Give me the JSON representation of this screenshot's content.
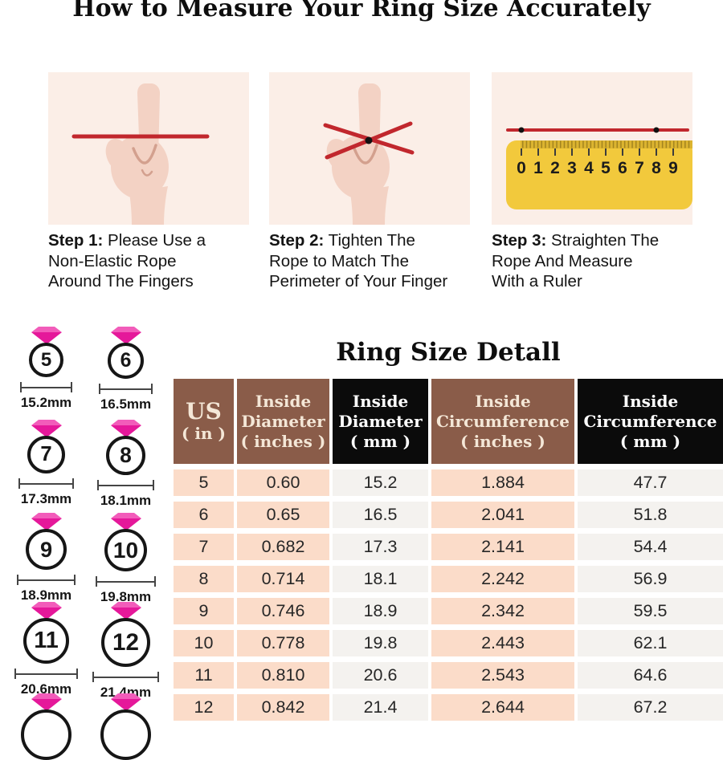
{
  "page_title": "How to Measure Your Ring Size Accurately",
  "steps": [
    {
      "bold": "Step 1:",
      "line1_rest": " Please Use a",
      "line2": "Non-Elastic Rope",
      "line3": "Around The Fingers"
    },
    {
      "bold": "Step 2:",
      "line1_rest": " Tighten The",
      "line2": "Rope to Match The",
      "line3": "Perimeter of Your Finger"
    },
    {
      "bold": "Step 3:",
      "line1_rest": " Straighten The",
      "line2": "Rope And Measure",
      "line3": "With a Ruler"
    }
  ],
  "ruler": {
    "numbers": [
      "0",
      "1",
      "2",
      "3",
      "4",
      "5",
      "6",
      "7",
      "8",
      "9"
    ]
  },
  "rings": {
    "items": [
      {
        "size": "5",
        "diameter": "15.2mm"
      },
      {
        "size": "6",
        "diameter": "16.5mm"
      },
      {
        "size": "7",
        "diameter": "17.3mm"
      },
      {
        "size": "8",
        "diameter": "18.1mm"
      },
      {
        "size": "9",
        "diameter": "18.9mm"
      },
      {
        "size": "10",
        "diameter": "19.8mm"
      },
      {
        "size": "11",
        "diameter": "20.6mm"
      },
      {
        "size": "12",
        "diameter": "21.4mm"
      }
    ],
    "partial_next_row_rings": 2
  },
  "table": {
    "title": "Ring Size Detall",
    "headers": [
      {
        "lines": [
          "US",
          "( in )"
        ],
        "style": "brown"
      },
      {
        "lines": [
          "Inside",
          "Diameter",
          "( inches )"
        ],
        "style": "brown"
      },
      {
        "lines": [
          "Inside",
          "Diameter",
          "( mm )"
        ],
        "style": "black"
      },
      {
        "lines": [
          "Inside",
          "Circumference",
          "( inches )"
        ],
        "style": "brown"
      },
      {
        "lines": [
          "Inside",
          "Circumference",
          "( mm )"
        ],
        "style": "black"
      }
    ],
    "rows": [
      [
        "5",
        "0.60",
        "15.2",
        "1.884",
        "47.7"
      ],
      [
        "6",
        "0.65",
        "16.5",
        "2.041",
        "51.8"
      ],
      [
        "7",
        "0.682",
        "17.3",
        "2.141",
        "54.4"
      ],
      [
        "8",
        "0.714",
        "18.1",
        "2.242",
        "56.9"
      ],
      [
        "9",
        "0.746",
        "18.9",
        "2.342",
        "59.5"
      ],
      [
        "10",
        "0.778",
        "19.8",
        "2.443",
        "62.1"
      ],
      [
        "11",
        "0.810",
        "20.6",
        "2.543",
        "64.6"
      ],
      [
        "12",
        "0.842",
        "21.4",
        "2.644",
        "67.2"
      ]
    ]
  },
  "colors": {
    "rope_red": "#c1272d",
    "panel_bg": "#fbeee7",
    "table_brown": "#8a5c49",
    "table_black": "#0b0b0b",
    "row_peach": "#fbdcc9",
    "row_offwhite": "#f4f2ef",
    "diamond_pink": "#e5189a",
    "diamond_pink_light": "#f25cba",
    "ruler_yellow": "#f2c93c",
    "ruler_band": "#dcb430",
    "header_cream": "#f4e7d7",
    "hand_skin": "#f3d2c4"
  }
}
